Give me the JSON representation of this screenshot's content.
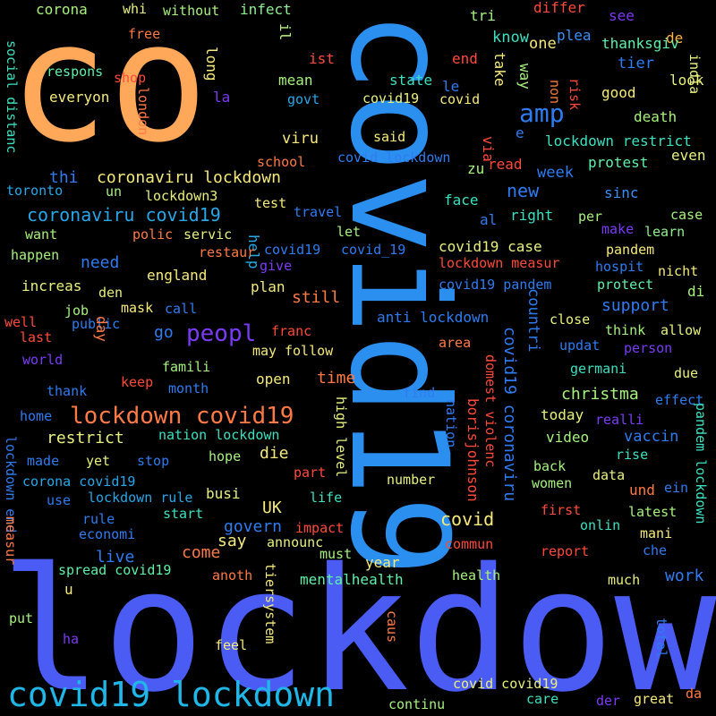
{
  "words": [
    {
      "text": "lockdown",
      "color": "#4b5cf5"
    },
    {
      "text": "covid19",
      "color": "#2b8fef"
    },
    {
      "text": "co",
      "color": "#ffa85a"
    },
    {
      "text": "covid19 lockdown",
      "color": "#1fb6e8"
    },
    {
      "text": "lockdown covid19",
      "color": "#ff7a45"
    },
    {
      "text": "peopl",
      "color": "#7a3bf5"
    },
    {
      "text": "amp",
      "color": "#2f7cf0"
    },
    {
      "text": "coronaviru covid19",
      "color": "#27a7e6"
    },
    {
      "text": "coronaviru lockdown",
      "color": "#f4e97a"
    },
    {
      "text": "covid19 coronaviru",
      "color": "#2f7cf0"
    },
    {
      "text": "christma",
      "color": "#a6f07c"
    },
    {
      "text": "restrict",
      "color": "#e8f07c"
    },
    {
      "text": "covid",
      "color": "#f4e97a"
    },
    {
      "text": "UK",
      "color": "#f4e97a"
    },
    {
      "text": "corona",
      "color": "#a6f07c"
    },
    {
      "text": "whi",
      "color": "#e8f07c"
    },
    {
      "text": "without",
      "color": "#a6f07c"
    },
    {
      "text": "infect",
      "color": "#8ef08e"
    },
    {
      "text": "differ",
      "color": "#ff4a3a"
    },
    {
      "text": "tri",
      "color": "#a6f07c"
    },
    {
      "text": "free",
      "color": "#ff7a45"
    },
    {
      "text": "il",
      "color": "#b5f07c"
    },
    {
      "text": "see",
      "color": "#7a3bf5"
    },
    {
      "text": "de",
      "color": "#ffb24a"
    },
    {
      "text": "one",
      "color": "#f4e97a"
    },
    {
      "text": "know",
      "color": "#3ce0c0"
    },
    {
      "text": "plea",
      "color": "#3a8ff5"
    },
    {
      "text": "thanksgiv",
      "color": "#5ff0a8"
    },
    {
      "text": "social distanc",
      "color": "#3ce0c0"
    },
    {
      "text": "respons",
      "color": "#5ff0a8"
    },
    {
      "text": "shop",
      "color": "#ff4a3a"
    },
    {
      "text": "long",
      "color": "#f4e97a"
    },
    {
      "text": "ist",
      "color": "#ff4a3a"
    },
    {
      "text": "end",
      "color": "#ff4a3a"
    },
    {
      "text": "take",
      "color": "#f4e97a"
    },
    {
      "text": "way",
      "color": "#a6f07c"
    },
    {
      "text": "state",
      "color": "#3ce0c0"
    },
    {
      "text": "everyon",
      "color": "#f4e97a"
    },
    {
      "text": "la",
      "color": "#7a3bf5"
    },
    {
      "text": "mean",
      "color": "#a6f07c"
    },
    {
      "text": "le",
      "color": "#2f7cf0"
    },
    {
      "text": "non",
      "color": "#f47a3a"
    },
    {
      "text": "risk",
      "color": "#ff4a3a"
    },
    {
      "text": "tier",
      "color": "#2f7cf0"
    },
    {
      "text": "look",
      "color": "#e8f07c"
    },
    {
      "text": "india",
      "color": "#e8f07c"
    },
    {
      "text": "govt",
      "color": "#27a7e6"
    },
    {
      "text": "covid19",
      "color": "#e8f07c"
    },
    {
      "text": "covid",
      "color": "#f4e97a"
    },
    {
      "text": "good",
      "color": "#f4e97a"
    },
    {
      "text": "london",
      "color": "#ff7a45"
    },
    {
      "text": "death",
      "color": "#a6f07c"
    },
    {
      "text": "e",
      "color": "#2f7cf0"
    },
    {
      "text": "said",
      "color": "#f4e97a"
    },
    {
      "text": "lockdown restrict",
      "color": "#3ce0c0"
    },
    {
      "text": "viru",
      "color": "#f4e97a"
    },
    {
      "text": "covid lockdown",
      "color": "#2f7cf0"
    },
    {
      "text": "via",
      "color": "#ff4a3a"
    },
    {
      "text": "even",
      "color": "#e8f07c"
    },
    {
      "text": "school",
      "color": "#ff7a45"
    },
    {
      "text": "protest",
      "color": "#5ff0a8"
    },
    {
      "text": "read",
      "color": "#ff4a3a"
    },
    {
      "text": "zu",
      "color": "#a6f07c"
    },
    {
      "text": "toronto",
      "color": "#27a7e6"
    },
    {
      "text": "thi",
      "color": "#2f7cf0"
    },
    {
      "text": "week",
      "color": "#2f7cf0"
    },
    {
      "text": "un",
      "color": "#a6f07c"
    },
    {
      "text": "lockdown3",
      "color": "#e8f07c"
    },
    {
      "text": "new",
      "color": "#2f7cf0"
    },
    {
      "text": "face",
      "color": "#3ce0c0"
    },
    {
      "text": "sinc",
      "color": "#3a8ff5"
    },
    {
      "text": "test",
      "color": "#f4e97a"
    },
    {
      "text": "travel",
      "color": "#2f7cf0"
    },
    {
      "text": "al",
      "color": "#2f7cf0"
    },
    {
      "text": "right",
      "color": "#3ce0c0"
    },
    {
      "text": "per",
      "color": "#a6f07c"
    },
    {
      "text": "case",
      "color": "#a6f07c"
    },
    {
      "text": "want",
      "color": "#a6f07c"
    },
    {
      "text": "polic",
      "color": "#ff7a45"
    },
    {
      "text": "servic",
      "color": "#e8f07c"
    },
    {
      "text": "let",
      "color": "#a6f07c"
    },
    {
      "text": "make",
      "color": "#7a3bf5"
    },
    {
      "text": "learn",
      "color": "#8ef08e"
    },
    {
      "text": "happen",
      "color": "#a6f07c"
    },
    {
      "text": "help",
      "color": "#27a7e6"
    },
    {
      "text": "restaur",
      "color": "#ff7a45"
    },
    {
      "text": "covid19",
      "color": "#2f7cf0"
    },
    {
      "text": "covid_19",
      "color": "#2f7cf0"
    },
    {
      "text": "covid19 case",
      "color": "#e8f07c"
    },
    {
      "text": "pandem",
      "color": "#f4e97a"
    },
    {
      "text": "give",
      "color": "#7a3bf5"
    },
    {
      "text": "need",
      "color": "#2f7cf0"
    },
    {
      "text": "lockdown measur",
      "color": "#ff4a3a"
    },
    {
      "text": "hospit",
      "color": "#2f7cf0"
    },
    {
      "text": "nicht",
      "color": "#f4e97a"
    },
    {
      "text": "england",
      "color": "#f4e97a"
    },
    {
      "text": "increas",
      "color": "#e8f07c"
    },
    {
      "text": "plan",
      "color": "#f4e97a"
    },
    {
      "text": "covid19 pandem",
      "color": "#2f7cf0"
    },
    {
      "text": "protect",
      "color": "#5ff0a8"
    },
    {
      "text": "den",
      "color": "#e8f07c"
    },
    {
      "text": "mask",
      "color": "#f4e97a"
    },
    {
      "text": "still",
      "color": "#ff7a45"
    },
    {
      "text": "di",
      "color": "#a6f07c"
    },
    {
      "text": "job",
      "color": "#a6f07c"
    },
    {
      "text": "call",
      "color": "#2f7cf0"
    },
    {
      "text": "countri",
      "color": "#2f7cf0"
    },
    {
      "text": "support",
      "color": "#2f7cf0"
    },
    {
      "text": "well",
      "color": "#ff4a3a"
    },
    {
      "text": "public",
      "color": "#2f7cf0"
    },
    {
      "text": "franc",
      "color": "#ff4a3a"
    },
    {
      "text": "anti lockdown",
      "color": "#2f7cf0"
    },
    {
      "text": "close",
      "color": "#e8f07c"
    },
    {
      "text": "last",
      "color": "#ff4a3a"
    },
    {
      "text": "go",
      "color": "#2f7cf0"
    },
    {
      "text": "follow",
      "color": "#f4e97a"
    },
    {
      "text": "think",
      "color": "#a6f07c"
    },
    {
      "text": "allow",
      "color": "#e8f07c"
    },
    {
      "text": "world",
      "color": "#7a3bf5"
    },
    {
      "text": "day",
      "color": "#ff7a45"
    },
    {
      "text": "may",
      "color": "#f4e97a"
    },
    {
      "text": "area",
      "color": "#ff7a45"
    },
    {
      "text": "updat",
      "color": "#2f7cf0"
    },
    {
      "text": "person",
      "color": "#7a3bf5"
    },
    {
      "text": "famili",
      "color": "#a6f07c"
    },
    {
      "text": "domest violenc",
      "color": "#ff4a3a"
    },
    {
      "text": "germani",
      "color": "#3ce0c0"
    },
    {
      "text": "due",
      "color": "#e8f07c"
    },
    {
      "text": "keep",
      "color": "#ff4a3a"
    },
    {
      "text": "thank",
      "color": "#2f7cf0"
    },
    {
      "text": "month",
      "color": "#2f7cf0"
    },
    {
      "text": "open",
      "color": "#f4e97a"
    },
    {
      "text": "time",
      "color": "#ff7a45"
    },
    {
      "text": "find",
      "color": "#2f7cf0"
    },
    {
      "text": "effect",
      "color": "#2f7cf0"
    },
    {
      "text": "high level",
      "color": "#e8f07c"
    },
    {
      "text": "home",
      "color": "#2f7cf0"
    },
    {
      "text": "today",
      "color": "#e8f07c"
    },
    {
      "text": "realli",
      "color": "#7a3bf5"
    },
    {
      "text": "nation",
      "color": "#2f7cf0"
    },
    {
      "text": "nation lockdown",
      "color": "#3ce0c0"
    },
    {
      "text": "video",
      "color": "#a6f07c"
    },
    {
      "text": "vaccin",
      "color": "#2f7cf0"
    },
    {
      "text": "borisjohnson",
      "color": "#ff4a3a"
    },
    {
      "text": "die",
      "color": "#f4e97a"
    },
    {
      "text": "lockdown end",
      "color": "#2f7cf0"
    },
    {
      "text": "made",
      "color": "#2f7cf0"
    },
    {
      "text": "yet",
      "color": "#e8f07c"
    },
    {
      "text": "stop",
      "color": "#2f7cf0"
    },
    {
      "text": "hope",
      "color": "#a6f07c"
    },
    {
      "text": "rise",
      "color": "#3ce0c0"
    },
    {
      "text": "back",
      "color": "#a6f07c"
    },
    {
      "text": "part",
      "color": "#ff4a3a"
    },
    {
      "text": "data",
      "color": "#e8f07c"
    },
    {
      "text": "corona covid19",
      "color": "#27a7e6"
    },
    {
      "text": "und",
      "color": "#ff7a45"
    },
    {
      "text": "ein",
      "color": "#2f7cf0"
    },
    {
      "text": "women",
      "color": "#a6f07c"
    },
    {
      "text": "pandem lockdown",
      "color": "#3ce0c0"
    },
    {
      "text": "use",
      "color": "#2f7cf0"
    },
    {
      "text": "lockdown rule",
      "color": "#27a7e6"
    },
    {
      "text": "busi",
      "color": "#e8f07c"
    },
    {
      "text": "number",
      "color": "#e8f07c"
    },
    {
      "text": "life",
      "color": "#3ce0c0"
    },
    {
      "text": "measur",
      "color": "#ff7a45"
    },
    {
      "text": "rule",
      "color": "#2f7cf0"
    },
    {
      "text": "start",
      "color": "#3ce0c0"
    },
    {
      "text": "first",
      "color": "#ff4a3a"
    },
    {
      "text": "latest",
      "color": "#a6f07c"
    },
    {
      "text": "economi",
      "color": "#2f7cf0"
    },
    {
      "text": "govern",
      "color": "#2f7cf0"
    },
    {
      "text": "impact",
      "color": "#ff4a3a"
    },
    {
      "text": "onlin",
      "color": "#3ce0c0"
    },
    {
      "text": "mani",
      "color": "#f4e97a"
    },
    {
      "text": "say",
      "color": "#f4e97a"
    },
    {
      "text": "announc",
      "color": "#e8f07c"
    },
    {
      "text": "commun",
      "color": "#ff4a3a"
    },
    {
      "text": "live",
      "color": "#2f7cf0"
    },
    {
      "text": "come",
      "color": "#ff7a45"
    },
    {
      "text": "must",
      "color": "#a6f07c"
    },
    {
      "text": "report",
      "color": "#ff4a3a"
    },
    {
      "text": "che",
      "color": "#2f7cf0"
    },
    {
      "text": "year",
      "color": "#f4e97a"
    },
    {
      "text": "spread covid19",
      "color": "#5ff0a8"
    },
    {
      "text": "mentalhealth",
      "color": "#5ff0a8"
    },
    {
      "text": "health",
      "color": "#a6f07c"
    },
    {
      "text": "work",
      "color": "#2f7cf0"
    },
    {
      "text": "u",
      "color": "#f4e97a"
    },
    {
      "text": "anoth",
      "color": "#ff7a45"
    },
    {
      "text": "much",
      "color": "#e8f07c"
    },
    {
      "text": "tiersystem",
      "color": "#f4e97a"
    },
    {
      "text": "caus",
      "color": "#ff7a45"
    },
    {
      "text": "put",
      "color": "#a6f07c"
    },
    {
      "text": "total",
      "color": "#2f7cf0"
    },
    {
      "text": "ha",
      "color": "#7a3bf5"
    },
    {
      "text": "feel",
      "color": "#f4e97a"
    },
    {
      "text": "covid covid19",
      "color": "#e8f07c"
    },
    {
      "text": "continu",
      "color": "#a6f07c"
    },
    {
      "text": "der",
      "color": "#7a3bf5"
    },
    {
      "text": "care",
      "color": "#3ce0c0"
    },
    {
      "text": "great",
      "color": "#f4e97a"
    },
    {
      "text": "da",
      "color": "#ff7a45"
    }
  ]
}
